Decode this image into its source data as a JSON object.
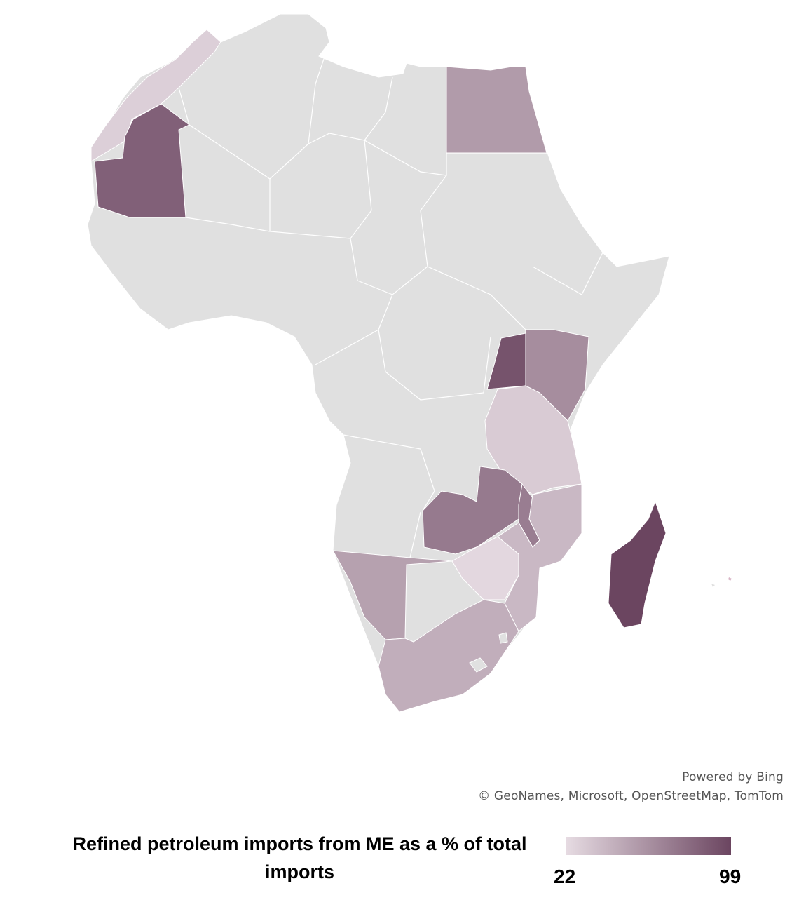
{
  "attribution": {
    "powered_by": "Powered by Bing",
    "copyright": "© GeoNames, Microsoft, OpenStreetMap, TomTom"
  },
  "legend": {
    "title": "Refined petroleum imports from ME as a % of total imports",
    "min_label": "22",
    "max_label": "99",
    "min_color": "#e6dbe2",
    "max_color": "#6b4560"
  },
  "chart_data": {
    "type": "choropleth",
    "title": "Refined petroleum imports from ME as a % of total imports",
    "range": [
      22,
      99
    ],
    "no_data_color": "#e0e0e0",
    "regions": [
      {
        "name": "Morocco",
        "value": 28
      },
      {
        "name": "Mauritania",
        "value": 85
      },
      {
        "name": "Egypt",
        "value": 55
      },
      {
        "name": "Uganda",
        "value": 92
      },
      {
        "name": "Kenya",
        "value": 62
      },
      {
        "name": "Tanzania",
        "value": 30
      },
      {
        "name": "Zambia",
        "value": 72
      },
      {
        "name": "Malawi",
        "value": 70
      },
      {
        "name": "Mozambique",
        "value": 40
      },
      {
        "name": "Zimbabwe",
        "value": 24
      },
      {
        "name": "Namibia",
        "value": 52
      },
      {
        "name": "South Africa",
        "value": 45
      },
      {
        "name": "Madagascar",
        "value": 99
      }
    ]
  }
}
